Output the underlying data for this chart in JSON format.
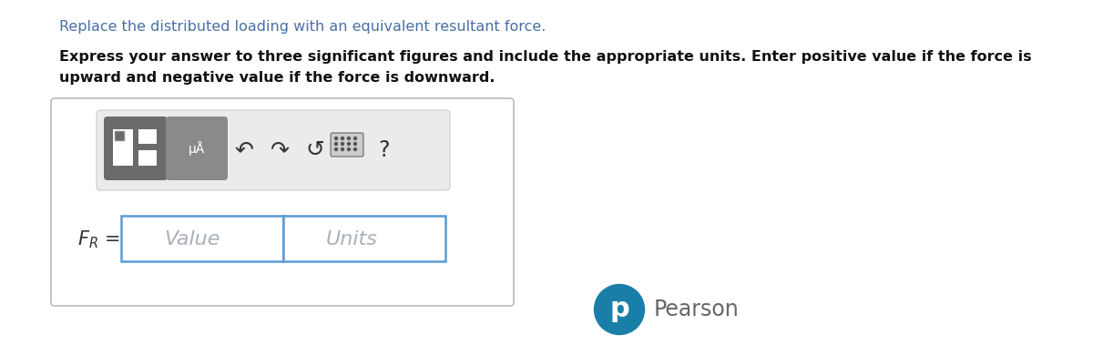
{
  "bg_color": "#ffffff",
  "line1_text": "Replace the distributed loading with an equivalent resultant force.",
  "line1_color": "#4a6fa5",
  "line1_fontsize": 11.5,
  "bold_text_line1": "Express your answer to three significant figures and include the appropriate units. Enter positive value if the force is",
  "bold_text_line2": "upward and negative value if the force is downward.",
  "bold_fontsize": 11.5,
  "outer_box_color": "#aaaaaa",
  "toolbar_bg": "#ebebeb",
  "icon1_bg": "#6b6b6b",
  "icon2_bg": "#8a8a8a",
  "input_border_color": "#5b9bd5",
  "value_color": "#aab0ba",
  "units_color": "#aab0ba",
  "fr_color": "#333333",
  "pearson_circle_color": "#1a7fa8",
  "pearson_text_color": "#666666",
  "arrow_color": "#333333"
}
